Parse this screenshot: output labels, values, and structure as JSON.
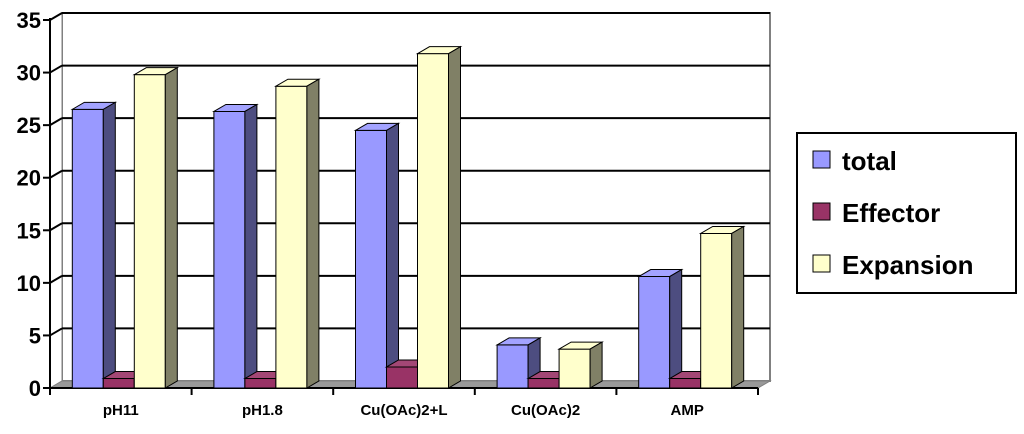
{
  "chart_data": {
    "type": "bar",
    "categories": [
      "pH11",
      "pH1.8",
      "Cu(OAc)2+L",
      "Cu(OAc)2",
      "AMP"
    ],
    "series": [
      {
        "name": "total",
        "values": [
          26.5,
          26.3,
          24.5,
          4.1,
          10.6
        ],
        "color": "#9999ff"
      },
      {
        "name": "Effector",
        "values": [
          0.9,
          0.9,
          2.0,
          0.9,
          0.9
        ],
        "color": "#993366"
      },
      {
        "name": "Expansion",
        "values": [
          29.8,
          28.7,
          31.8,
          3.7,
          14.7
        ],
        "color": "#ffffcc"
      }
    ],
    "ylim": [
      0,
      35
    ],
    "yticks": [
      "0",
      "5",
      "10",
      "15",
      "20",
      "25",
      "30",
      "35"
    ],
    "grid": true,
    "legend": "right",
    "style": "3d-bar"
  }
}
